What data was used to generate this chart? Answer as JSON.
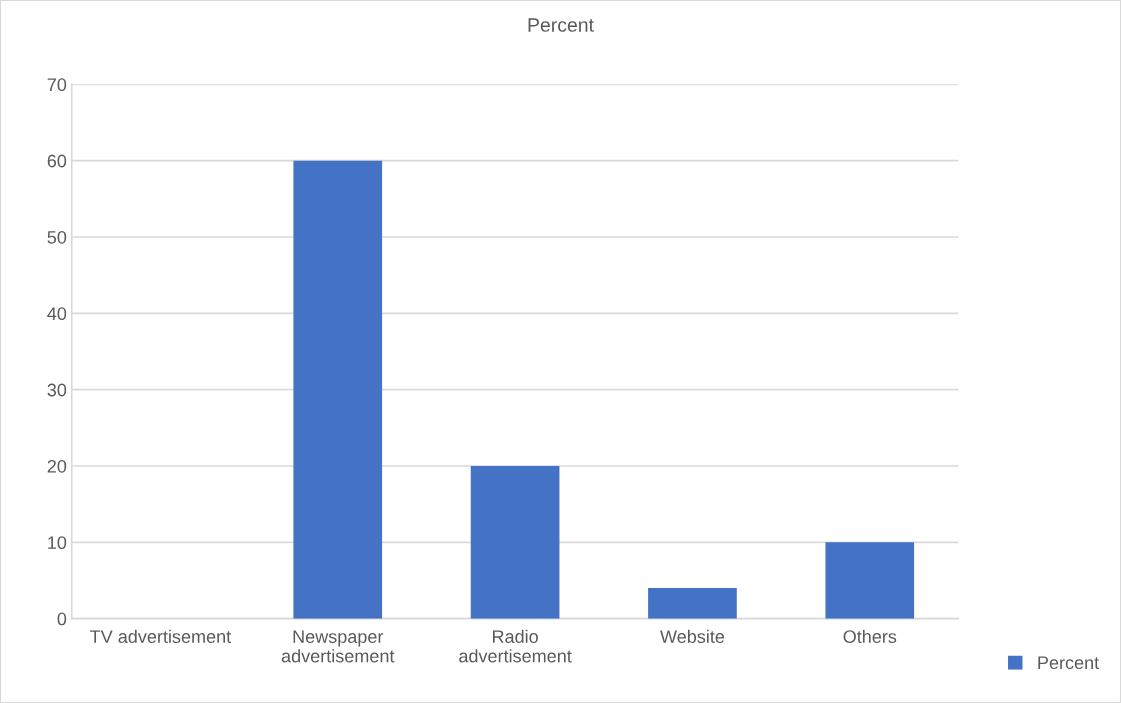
{
  "chart_data": {
    "type": "bar",
    "title": "Percent",
    "categories": [
      "TV advertisement",
      "Newspaper advertisement",
      "Radio advertisement",
      "Website",
      "Others"
    ],
    "series": [
      {
        "name": "Percent",
        "color": "#4472c4",
        "values": [
          null,
          60,
          20,
          4,
          10
        ]
      }
    ],
    "ylim": [
      0,
      70
    ],
    "yticks": [
      0,
      10,
      20,
      30,
      40,
      50,
      60,
      70
    ],
    "grid": "y",
    "legend": "bottom right"
  }
}
